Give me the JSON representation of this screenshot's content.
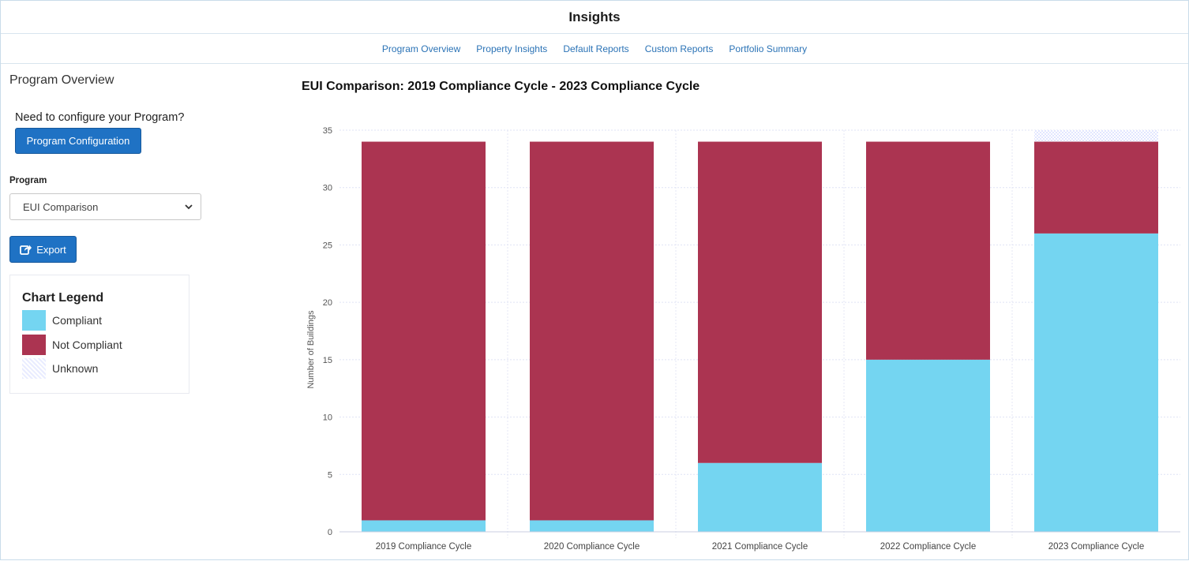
{
  "header": {
    "title": "Insights"
  },
  "nav": {
    "tabs": [
      {
        "label": "Program Overview"
      },
      {
        "label": "Property Insights"
      },
      {
        "label": "Default Reports"
      },
      {
        "label": "Custom Reports"
      },
      {
        "label": "Portfolio Summary"
      }
    ],
    "active": 0
  },
  "sidebar": {
    "section_title": "Program Overview",
    "config_prompt": "Need to configure your Program?",
    "config_button": "Program Configuration",
    "program_label": "Program",
    "program_selected": "EUI Comparison",
    "export_button": "Export",
    "legend": {
      "title": "Chart Legend",
      "items": [
        {
          "label": "Compliant",
          "color": "#74d5f1"
        },
        {
          "label": "Not Compliant",
          "color": "#ab3451"
        },
        {
          "label": "Unknown",
          "color": "#e9ecff"
        }
      ]
    }
  },
  "chart_data": {
    "type": "bar",
    "stacked": true,
    "title": "EUI Comparison: 2019 Compliance Cycle - 2023 Compliance Cycle",
    "xlabel": "",
    "ylabel": "Number of Buildings",
    "ylim": [
      0,
      35
    ],
    "yticks": [
      0,
      5,
      10,
      15,
      20,
      25,
      30,
      35
    ],
    "categories": [
      "2019 Compliance Cycle",
      "2020 Compliance Cycle",
      "2021 Compliance Cycle",
      "2022 Compliance Cycle",
      "2023 Compliance Cycle"
    ],
    "series": [
      {
        "name": "Compliant",
        "color": "#74d5f1",
        "values": [
          1,
          1,
          6,
          15,
          26
        ]
      },
      {
        "name": "Not Compliant",
        "color": "#ab3451",
        "values": [
          33,
          33,
          28,
          19,
          8
        ]
      },
      {
        "name": "Unknown",
        "color": "#e9ecff",
        "values": [
          0,
          0,
          0,
          0,
          1
        ]
      }
    ],
    "grid": true,
    "legend": "none"
  }
}
